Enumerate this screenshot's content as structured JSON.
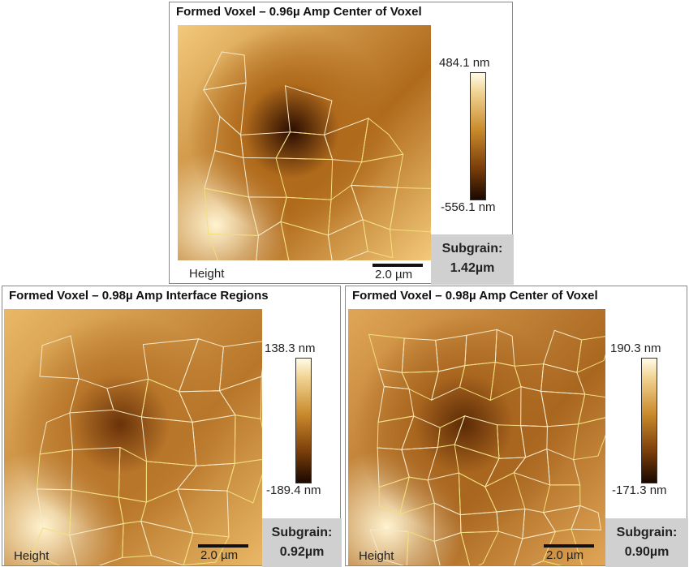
{
  "panels": [
    {
      "title": "Formed Voxel – 0.96µ Amp Center of Voxel",
      "colorbar_max": "484.1 nm",
      "colorbar_min": "-556.1 nm",
      "channel": "Height",
      "scale_bar": "2.0 µm",
      "subgrain": [
        "Subgrain:",
        "1.42µm"
      ]
    },
    {
      "title": "Formed Voxel – 0.98µ Amp Interface Regions",
      "colorbar_max": "138.3 nm",
      "colorbar_min": "-189.4 nm",
      "channel": "Height",
      "scale_bar": "2.0 µm",
      "subgrain": [
        "Subgrain:",
        "0.92µm"
      ]
    },
    {
      "title": "Formed Voxel – 0.98µ Amp Center of Voxel",
      "colorbar_max": "190.3 nm",
      "colorbar_min": "-171.3 nm",
      "channel": "Height",
      "scale_bar": "2.0 µm",
      "subgrain": [
        "Subgrain:",
        "0.90µm"
      ]
    }
  ]
}
